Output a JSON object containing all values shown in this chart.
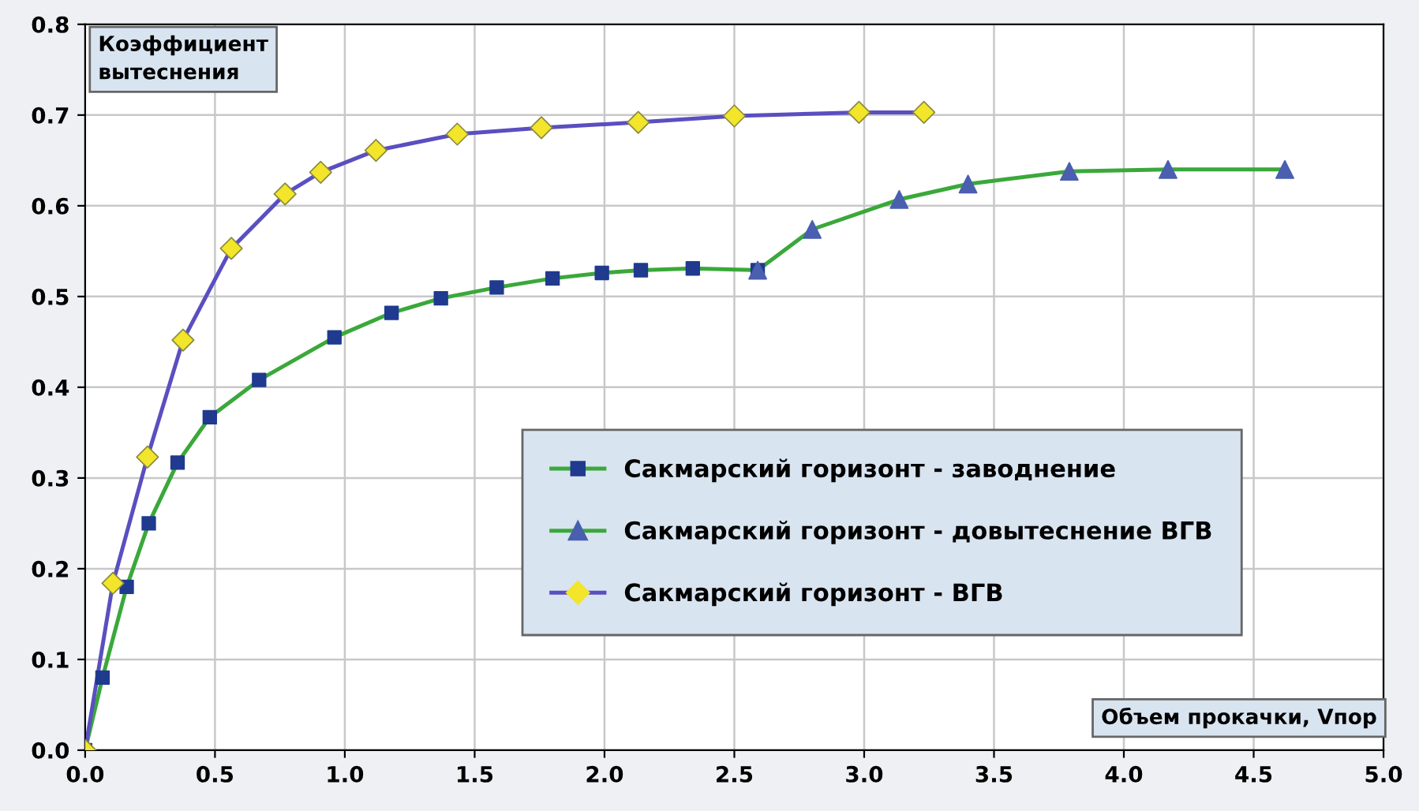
{
  "chart_data": {
    "type": "line",
    "xlabel": "Объем прокачки, Vпор",
    "ylabel": "Коэффициент\nвытеснения",
    "xlim": [
      0,
      5
    ],
    "xticks": [
      {
        "value": 0,
        "label": "0.0"
      },
      0.5,
      {
        "value": 1,
        "label": "1.0"
      },
      1.5,
      {
        "value": 2,
        "label": "2.0"
      },
      2.5,
      {
        "value": 3,
        "label": "3.0"
      },
      3.5,
      {
        "value": 4,
        "label": "4.0"
      },
      4.5,
      {
        "value": 5,
        "label": "5.0"
      }
    ],
    "ylim": [
      0,
      0.8
    ],
    "yticks": [
      {
        "value": 0,
        "label": "0.0"
      },
      0.1,
      0.2,
      0.3,
      0.4,
      0.5,
      0.6,
      0.7,
      0.8
    ],
    "grid": true,
    "legend": "center right",
    "series": [
      {
        "name": "Сакмарский горизонт - заводнение",
        "color": "#3aa83a",
        "marker": "square",
        "x": [
          0,
          0.067,
          0.16,
          0.245,
          0.356,
          0.48,
          0.67,
          0.96,
          1.18,
          1.37,
          1.585,
          1.8,
          1.99,
          2.14,
          2.34,
          2.59
        ],
        "values": [
          0,
          0.08,
          0.18,
          0.25,
          0.317,
          0.367,
          0.408,
          0.455,
          0.482,
          0.498,
          0.51,
          0.52,
          0.526,
          0.529,
          0.531,
          0.529
        ],
        "colors": [
          "#1f3a8f",
          "#1f3a8f",
          "#1f3a8f",
          "#1f3a8f",
          "#1f3a8f",
          "#1f3a8f",
          "#1f3a8f",
          "#1f3a8f",
          "#1f3a8f",
          "#1f3a8f",
          "#1f3a8f",
          "#1f3a8f",
          "#1f3a8f",
          "#1f3a8f",
          "#1f3a8f",
          "#1f3a8f"
        ]
      },
      {
        "name": "Сакмарский горизонт - довытеснение ВГВ",
        "color": "#3aa83a",
        "marker": "triangle",
        "x": [
          2.59,
          2.8,
          3.135,
          3.4,
          3.79,
          4.17,
          4.62
        ],
        "values": [
          0.529,
          0.574,
          0.607,
          0.624,
          0.638,
          0.64,
          0.64
        ],
        "colors": [
          "#4a5fb0",
          "#4a5fb0",
          "#4a5fb0",
          "#4a5fb0",
          "#4a5fb0",
          "#4a5fb0",
          "#4a5fb0"
        ]
      },
      {
        "name": "Сакмарский горизонт - ВГВ",
        "color": "#5a4fc0",
        "marker": "diamond",
        "x": [
          0,
          0.107,
          0.24,
          0.377,
          0.563,
          0.77,
          0.907,
          1.12,
          1.433,
          1.757,
          2.13,
          2.5,
          2.98,
          3.23
        ],
        "values": [
          0,
          0.184,
          0.323,
          0.452,
          0.553,
          0.613,
          0.637,
          0.661,
          0.679,
          0.686,
          0.692,
          0.699,
          0.703,
          0.703
        ],
        "colors": [
          "#f2e52a",
          "#f2e52a",
          "#f2e52a",
          "#f2e52a",
          "#f2e52a",
          "#f2e52a",
          "#f2e52a",
          "#f2e52a",
          "#f2e52a",
          "#f2e52a",
          "#f2e52a",
          "#f2e52a",
          "#f2e52a",
          "#f2e52a"
        ]
      }
    ]
  }
}
